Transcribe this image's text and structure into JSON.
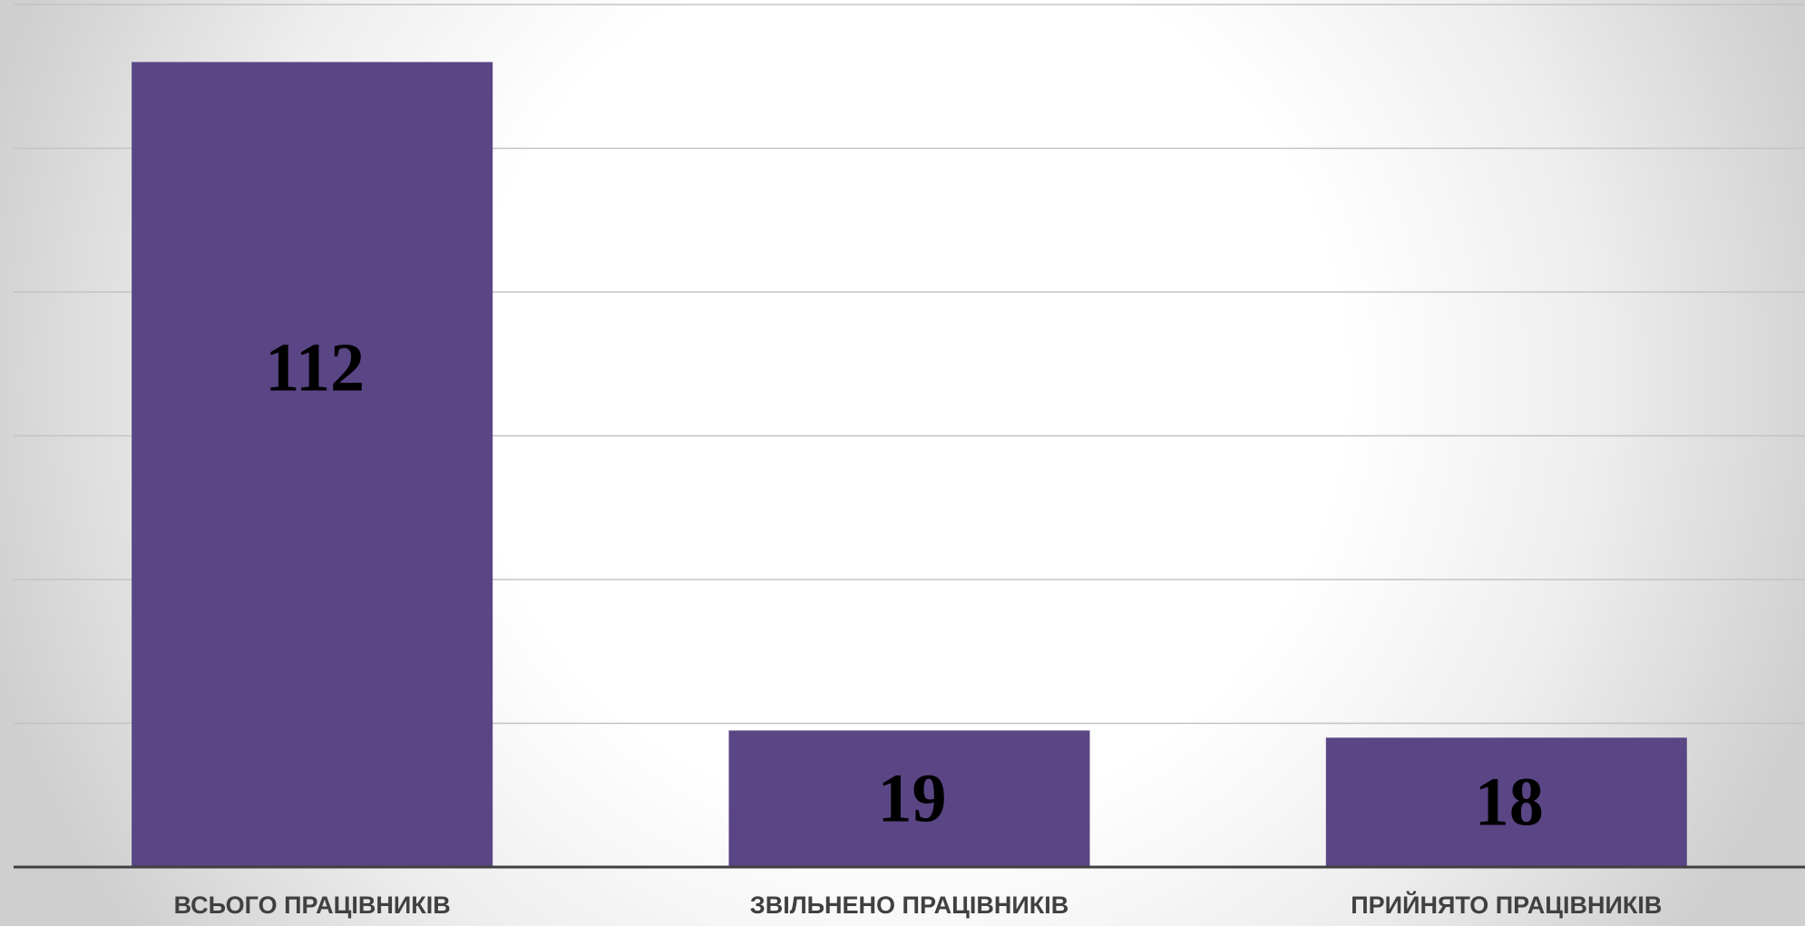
{
  "chart_data": {
    "type": "bar",
    "categories": [
      "ВСЬОГО ПРАЦІВНИКІВ",
      "ЗВІЛЬНЕНО ПРАЦІВНИКІВ",
      "ПРИЙНЯТО ПРАЦІВНИКІВ"
    ],
    "values": [
      112,
      19,
      18
    ],
    "data_labels": [
      "112",
      "19",
      "18"
    ],
    "ylim": [
      0,
      120
    ],
    "grid": true,
    "y_tick_labels_visible": false,
    "legend": "none",
    "colors": {
      "bar": "#5a4585",
      "axis": "#404040",
      "grid": "#c3c3c3",
      "label_text": "#404040",
      "value_text": "#000000"
    }
  }
}
